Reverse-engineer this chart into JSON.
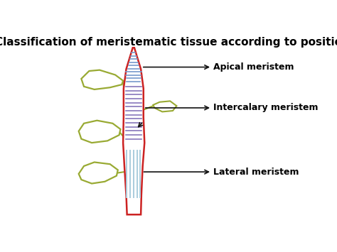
{
  "title": "Classification of meristematic tissue according to position",
  "title_fontsize": 11,
  "title_fontweight": "bold",
  "bg_color": "#ffffff",
  "stem_color": "#cc2222",
  "apical_hatch_color": "#7799cc",
  "intercalary_hatch_color": "#8877bb",
  "lateral_hatch_color": "#aaccdd",
  "leaf_color": "#99aa33",
  "arrow_color": "#111111",
  "label_apical": "Apical meristem",
  "label_intercalary": "Intercalary meristem",
  "label_lateral": "Lateral meristem",
  "label_fontsize": 9,
  "label_fontweight": "bold"
}
